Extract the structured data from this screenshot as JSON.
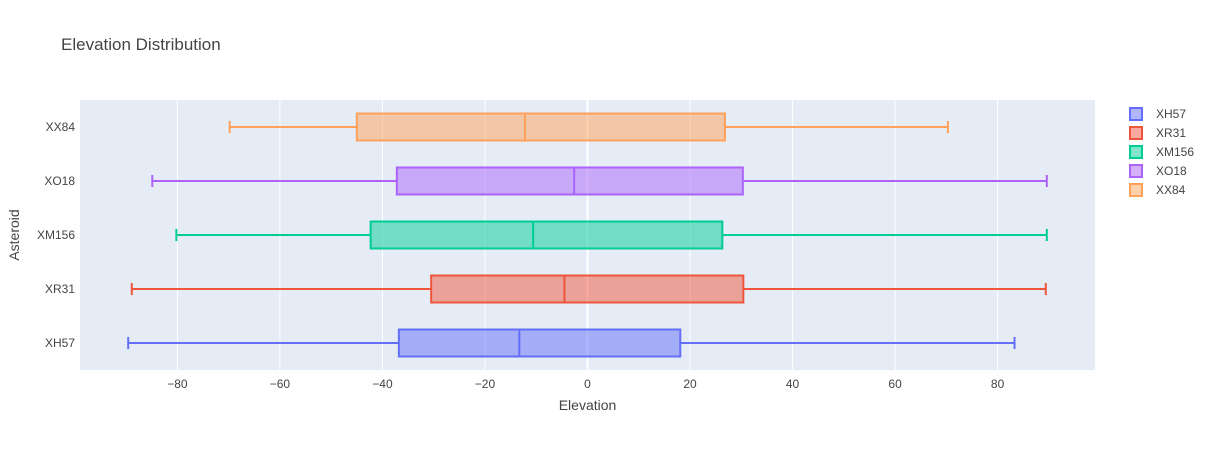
{
  "chart_data": {
    "type": "box",
    "orientation": "horizontal",
    "title": "Elevation Distribution",
    "xlabel": "Elevation",
    "ylabel": "Asteroid",
    "xlim": [
      -99,
      99
    ],
    "xticks": [
      -80,
      -60,
      -40,
      -20,
      0,
      20,
      40,
      60,
      80
    ],
    "xtick_labels": [
      "−80",
      "−60",
      "−40",
      "−20",
      "0",
      "20",
      "40",
      "60",
      "80"
    ],
    "grid": true,
    "legend_position": "right",
    "series": [
      {
        "name": "XH57",
        "color": "#636efa",
        "min": -89.6,
        "q1": -36.8,
        "median": -13.3,
        "q3": 18.1,
        "max": 83.3
      },
      {
        "name": "XR31",
        "color": "#ef553b",
        "min": -88.9,
        "q1": -30.5,
        "median": -4.5,
        "q3": 30.4,
        "max": 89.4
      },
      {
        "name": "XM156",
        "color": "#00cc96",
        "min": -80.2,
        "q1": -42.3,
        "median": -10.6,
        "q3": 26.3,
        "max": 89.6
      },
      {
        "name": "XO18",
        "color": "#ab63fa",
        "min": -84.9,
        "q1": -37.2,
        "median": -2.6,
        "q3": 30.3,
        "max": 89.6
      },
      {
        "name": "XX84",
        "color": "#ffa15a",
        "min": -69.8,
        "q1": -45.0,
        "median": -12.2,
        "q3": 26.8,
        "max": 70.3
      }
    ]
  }
}
